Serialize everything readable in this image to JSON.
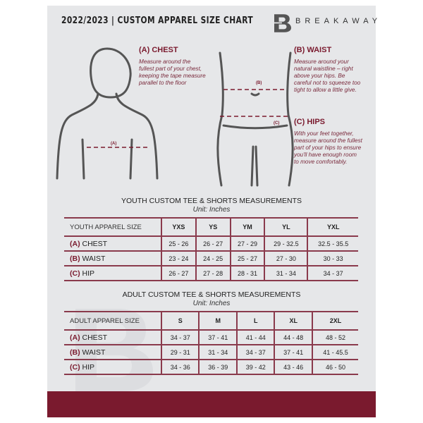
{
  "header": {
    "title": "2022/2023  |  CUSTOM APPAREL SIZE CHART",
    "brand": "BREAKAWAY",
    "logo_letter": "B"
  },
  "guide": {
    "chest": {
      "title": "(A) CHEST",
      "text": "Measure around the fullest part of your chest, keeping the tape measure parallel to the floor",
      "marker": "(A)"
    },
    "waist": {
      "title": "(B) WAIST",
      "text": "Measure around your natural waistline – right above your hips. Be careful not to squeeze too tight to allow a little give.",
      "marker": "(B)"
    },
    "hips": {
      "title": "(C) HIPS",
      "text": "With your feet together, measure around the fullest part of your hips to ensure you'll have enough room to move comfortably.",
      "marker": "(C)"
    }
  },
  "youth": {
    "title": "YOUTH CUSTOM TEE & SHORTS MEASUREMENTS",
    "unit": "Unit: Inches",
    "header": [
      "YOUTH APPAREL SIZE",
      "YXS",
      "YS",
      "YM",
      "YL",
      "YXL"
    ],
    "rows": [
      {
        "code": "(A)",
        "name": "CHEST",
        "values": [
          "25 - 26",
          "26 - 27",
          "27 - 29",
          "29 - 32.5",
          "32.5 - 35.5"
        ]
      },
      {
        "code": "(B)",
        "name": "WAIST",
        "values": [
          "23 - 24",
          "24 - 25",
          "25 - 27",
          "27 - 30",
          "30 - 33"
        ]
      },
      {
        "code": "(C)",
        "name": "HIP",
        "values": [
          "26 - 27",
          "27 - 28",
          "28 - 31",
          "31 - 34",
          "34 - 37"
        ]
      }
    ]
  },
  "adult": {
    "title": "ADULT CUSTOM TEE & SHORTS MEASUREMENTS",
    "unit": "Unit: Inches",
    "header": [
      "ADULT APPAREL SIZE",
      "S",
      "M",
      "L",
      "XL",
      "2XL"
    ],
    "rows": [
      {
        "code": "(A)",
        "name": "CHEST",
        "values": [
          "34 - 37",
          "37 - 41",
          "41 - 44",
          "44 - 48",
          "48 - 52"
        ]
      },
      {
        "code": "(B)",
        "name": "WAIST",
        "values": [
          "29 - 31",
          "31 - 34",
          "34 - 37",
          "37 - 41",
          "41 - 45.5"
        ]
      },
      {
        "code": "(C)",
        "name": "HIP",
        "values": [
          "34 - 36",
          "36 - 39",
          "39 - 42",
          "43 - 46",
          "46 - 50"
        ]
      }
    ]
  },
  "colors": {
    "accent": "#7a1a2e",
    "background": "#e6e7e9"
  }
}
